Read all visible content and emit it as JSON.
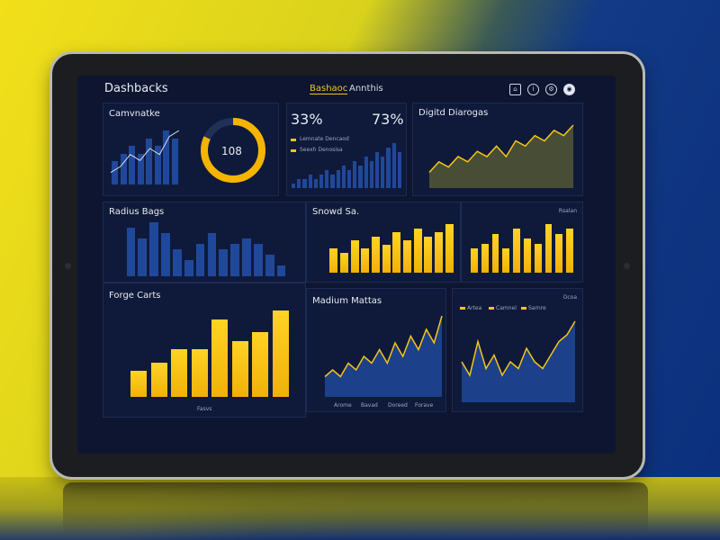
{
  "header": {
    "title": "Dashbacks",
    "tabs": [
      {
        "label": "Bashaoc",
        "active": true
      },
      {
        "label": "Annthis",
        "active": false
      }
    ],
    "icons": [
      "home-icon",
      "info-icon",
      "settings-icon",
      "profile-icon"
    ]
  },
  "panels": {
    "community": {
      "title": "Camvnatke",
      "bars": [
        3,
        4,
        5,
        4,
        6,
        5,
        7,
        6
      ],
      "line": [
        2,
        3,
        5,
        4,
        6,
        5,
        8,
        9
      ],
      "gauge_value": "108",
      "gauge_percent": 0.82
    },
    "stats": {
      "value1": "33%",
      "value2": "73%",
      "legend": [
        "Lemnate Dencaod",
        "Seexh Denosisa"
      ],
      "bars": [
        1,
        2,
        2,
        3,
        2,
        3,
        4,
        3,
        4,
        5,
        4,
        6,
        5,
        7,
        6,
        8,
        7,
        9,
        10,
        8
      ]
    },
    "digital": {
      "title": "Digitd Diarogas",
      "values": [
        3,
        5,
        4,
        6,
        5,
        7,
        6,
        8,
        6,
        9,
        8,
        10,
        9,
        11,
        10,
        12
      ]
    },
    "radius": {
      "title": "Radius Bags",
      "values": [
        9,
        7,
        10,
        8,
        5,
        3,
        6,
        8,
        5,
        6,
        7,
        6,
        4,
        2
      ]
    },
    "speed": {
      "title": "Snowd Sa.",
      "values": [
        6,
        5,
        8,
        6,
        9,
        7,
        10,
        8,
        11,
        9,
        10,
        12
      ]
    },
    "right_small": {
      "label": "Rsalan",
      "values": [
        5,
        6,
        8,
        5,
        9,
        7,
        6,
        10,
        8,
        9
      ]
    },
    "forge": {
      "title": "Forge Carts",
      "values": [
        30,
        40,
        55,
        55,
        90,
        65,
        75,
        100
      ],
      "x_caption": "Fasvs"
    },
    "medium": {
      "title": "Madium Mattas",
      "values": [
        3,
        4,
        3,
        5,
        4,
        6,
        5,
        7,
        5,
        8,
        6,
        9,
        7,
        10,
        8,
        12
      ],
      "legend": [
        "Arome",
        "Bavad",
        "Doreed",
        "Forave"
      ]
    },
    "far_right": {
      "label": "Ocoa",
      "legend": [
        "Artea",
        "Camnel",
        "Sarnre"
      ],
      "values": [
        6,
        4,
        9,
        5,
        7,
        4,
        6,
        5,
        8,
        6,
        5,
        7,
        9,
        10,
        12
      ]
    }
  },
  "colors": {
    "accent": "#f5c518",
    "bar_blue": "#20489a",
    "screen_bg": "#0d1530"
  }
}
